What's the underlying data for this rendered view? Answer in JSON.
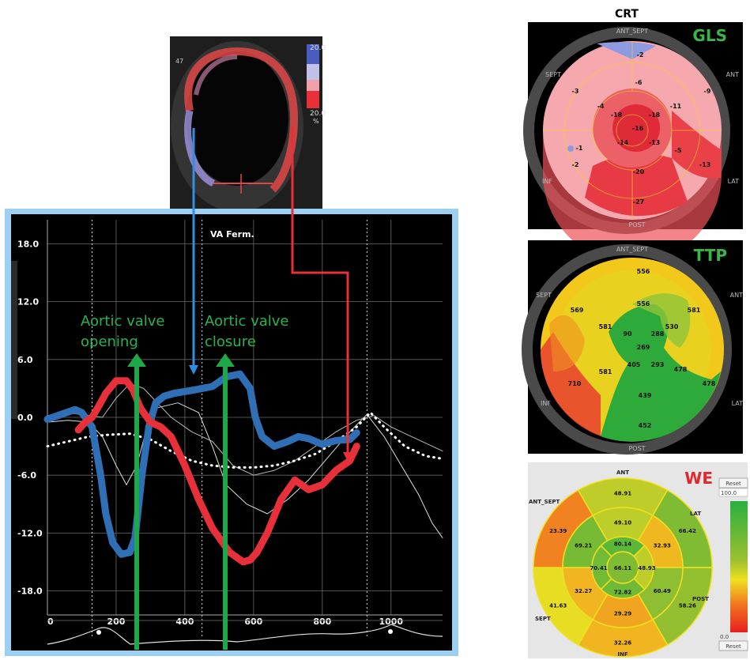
{
  "strain_chart": {
    "annotation": "VA Ferm.",
    "arrow_labels": {
      "opening_1": "Aortic valve",
      "opening_2": "opening",
      "closure_1": "Aortic valve",
      "closure_2": "closure"
    },
    "echo_labels": {
      "frame": "47",
      "scale_top": "20.0",
      "scale_bottom": "20.0",
      "unit": "%"
    },
    "colors": {
      "septal": "#2f6fb5",
      "lateral": "#e8303a",
      "arrow_green": "#1ea84a",
      "arrow_blue": "#2f8fe0",
      "arrow_red": "#e8303a",
      "label_green": "#29b34f"
    }
  },
  "chart_data": [
    {
      "type": "line",
      "title": "",
      "xlabel": "",
      "ylabel": "",
      "xlim": [
        0,
        1150
      ],
      "ylim": [
        -20.5,
        20.5
      ],
      "x_ticks": [
        "0",
        "200",
        "400",
        "600",
        "800",
        "1000"
      ],
      "y_ticks": [
        "18.0",
        "12.0",
        "6.0",
        "0.0",
        "-6.0",
        "-12.0",
        "-18.0"
      ],
      "x_tick_values": [
        0,
        200,
        400,
        600,
        800,
        1000
      ],
      "y_tick_values": [
        18,
        12,
        6,
        0,
        -6,
        -12,
        -18
      ],
      "grid": true,
      "dashed_x": [
        130,
        450,
        930
      ],
      "events": [
        {
          "x": 250,
          "label": "Aortic valve opening"
        },
        {
          "x": 500,
          "label": "Aortic valve closure"
        }
      ],
      "series": [
        {
          "color": "#2f6fb5",
          "x": [
            0,
            40,
            80,
            100,
            130,
            155,
            170,
            190,
            215,
            240,
            255,
            275,
            295,
            315,
            340,
            370,
            420,
            480,
            520,
            560,
            590,
            605,
            625,
            660,
            700,
            730,
            760,
            800,
            840,
            880,
            900
          ],
          "y": [
            -0.2,
            0.3,
            0.8,
            0.5,
            -1.0,
            -6.0,
            -10.0,
            -13.0,
            -14.2,
            -14.0,
            -12.5,
            -6.0,
            -1.0,
            1.5,
            2.2,
            2.5,
            2.8,
            3.2,
            4.2,
            4.5,
            3.0,
            0.0,
            -2.0,
            -3.0,
            -2.5,
            -2.0,
            -2.2,
            -2.8,
            -2.4,
            -2.3,
            -1.6
          ]
        },
        {
          "color": "#e8303a",
          "x": [
            90,
            110,
            130,
            150,
            170,
            200,
            230,
            250,
            270,
            300,
            330,
            360,
            400,
            440,
            480,
            530,
            570,
            590,
            610,
            640,
            680,
            720,
            760,
            800,
            840,
            880,
            900
          ],
          "y": [
            -1.3,
            -0.5,
            0.0,
            1.2,
            2.5,
            3.8,
            3.8,
            2.8,
            1.0,
            -0.5,
            -1.0,
            -2.0,
            -5.0,
            -8.5,
            -11.5,
            -14.0,
            -15.0,
            -14.8,
            -14.0,
            -12.0,
            -8.5,
            -6.5,
            -7.5,
            -7.0,
            -5.5,
            -4.5,
            -3.0
          ]
        },
        {
          "color": "#ffffff",
          "dotted": true,
          "x": [
            0,
            60,
            120,
            180,
            240,
            300,
            360,
            420,
            480,
            540,
            600,
            660,
            720,
            780,
            840,
            900,
            940,
            980,
            1040,
            1100,
            1150
          ],
          "y": [
            -3.0,
            -2.5,
            -2.0,
            -1.8,
            -1.7,
            -2.3,
            -3.5,
            -4.5,
            -5.0,
            -5.2,
            -5.2,
            -5.0,
            -4.5,
            -3.8,
            -2.5,
            -1.0,
            0.5,
            -1.0,
            -3.0,
            -4.0,
            -4.3
          ]
        },
        {
          "color": "#dddddd",
          "thin": true,
          "x": [
            0,
            60,
            120,
            160,
            200,
            230,
            260,
            290,
            320,
            380,
            440,
            480,
            520,
            580,
            640,
            700,
            760,
            820,
            880,
            930,
            980,
            1030,
            1080,
            1120,
            1150
          ],
          "y": [
            -0.5,
            -0.3,
            -0.5,
            -2.0,
            -5.0,
            -7.0,
            -5.0,
            -1.0,
            1.0,
            1.5,
            0.5,
            -3.0,
            -7.0,
            -9.0,
            -10.0,
            -8.5,
            -6.5,
            -4.0,
            -1.5,
            0.3,
            -2.0,
            -5.0,
            -8.0,
            -11.0,
            -12.5
          ]
        },
        {
          "color": "#bbbbbb",
          "thin": true,
          "x": [
            0,
            80,
            160,
            200,
            240,
            280,
            320,
            360,
            420,
            480,
            540,
            600,
            660,
            720,
            780,
            840,
            900,
            950,
            1000,
            1060,
            1120,
            1150
          ],
          "y": [
            0.2,
            0.4,
            0.0,
            2.0,
            3.5,
            3.0,
            1.5,
            0.0,
            -1.5,
            -2.5,
            -5.0,
            -6.0,
            -5.5,
            -4.5,
            -3.0,
            -1.5,
            -0.3,
            0.2,
            -1.0,
            -2.0,
            -3.0,
            -3.5
          ]
        }
      ]
    },
    {
      "type": "heatmap",
      "title": "CRT",
      "label": "GLS",
      "orientation_labels": {
        "top": "ANT_SEPT",
        "left_top": "SEPT",
        "right_top": "ANT",
        "left_bottom": "INF",
        "right_bottom": "LAT",
        "bottom": "POST"
      },
      "segments": [
        "-2",
        "-3",
        "-9",
        "-6",
        "-4",
        "-11",
        "-18",
        "-18",
        "-16",
        "-1",
        "-14",
        "-13",
        "-5",
        "-2",
        "-13",
        "-20",
        "-27"
      ]
    },
    {
      "type": "heatmap",
      "label": "TTP",
      "orientation_labels": {
        "top": "ANT_SEPT",
        "left_top": "SEPT",
        "right_top": "ANT",
        "left_bottom": "INF",
        "right_bottom": "LAT",
        "bottom": "POST"
      },
      "segments": [
        "556",
        "569",
        "581",
        "556",
        "581",
        "530",
        "90",
        "288",
        "269",
        "581",
        "405",
        "293",
        "478",
        "710",
        "478",
        "439",
        "452"
      ]
    },
    {
      "type": "heatmap",
      "label": "WE",
      "orientation_labels": {
        "top": "ANT",
        "left_top": "ANT_SEPT",
        "right_top": "LAT",
        "left_bottom": "SEPT",
        "right_bottom": "POST",
        "bottom": "INF"
      },
      "outer": [
        "48.91",
        "66.42",
        "58.26",
        "32.26",
        "41.63",
        "23.39"
      ],
      "mid": [
        "49.10",
        "32.93",
        "60.49",
        "29.29",
        "32.27",
        "69.21"
      ],
      "apical": [
        "80.14",
        "48.93",
        "72.82",
        "70.41"
      ],
      "apex": "66.11",
      "scale": {
        "top": "100.0",
        "bottom": "0.0",
        "reset": "Reset"
      }
    }
  ]
}
